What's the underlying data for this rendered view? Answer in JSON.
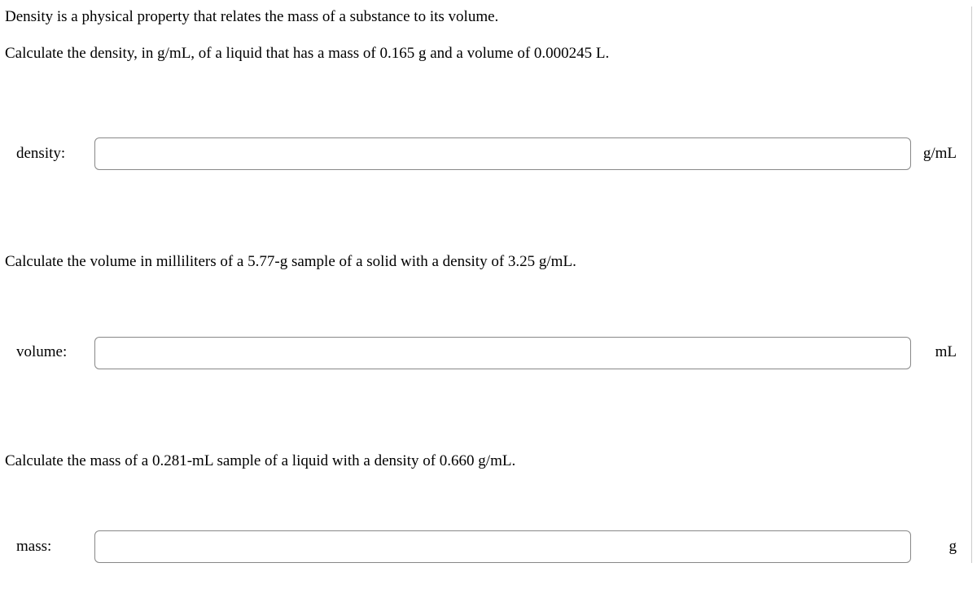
{
  "intro": "Density is a physical property that relates the mass of a substance to its volume.",
  "q1": {
    "prompt": "Calculate the density, in g/mL, of a liquid that has a mass of 0.165 g and a volume of 0.000245 L.",
    "label": "density:",
    "value": "",
    "unit": "g/mL"
  },
  "q2": {
    "prompt": "Calculate the volume in milliliters of a 5.77-g sample of a solid with a density of 3.25 g/mL.",
    "label": "volume:",
    "value": "",
    "unit": "mL"
  },
  "q3": {
    "prompt": "Calculate the mass of a 0.281-mL sample of a liquid with a density of 0.660 g/mL.",
    "label": "mass:",
    "value": "",
    "unit": "g"
  }
}
